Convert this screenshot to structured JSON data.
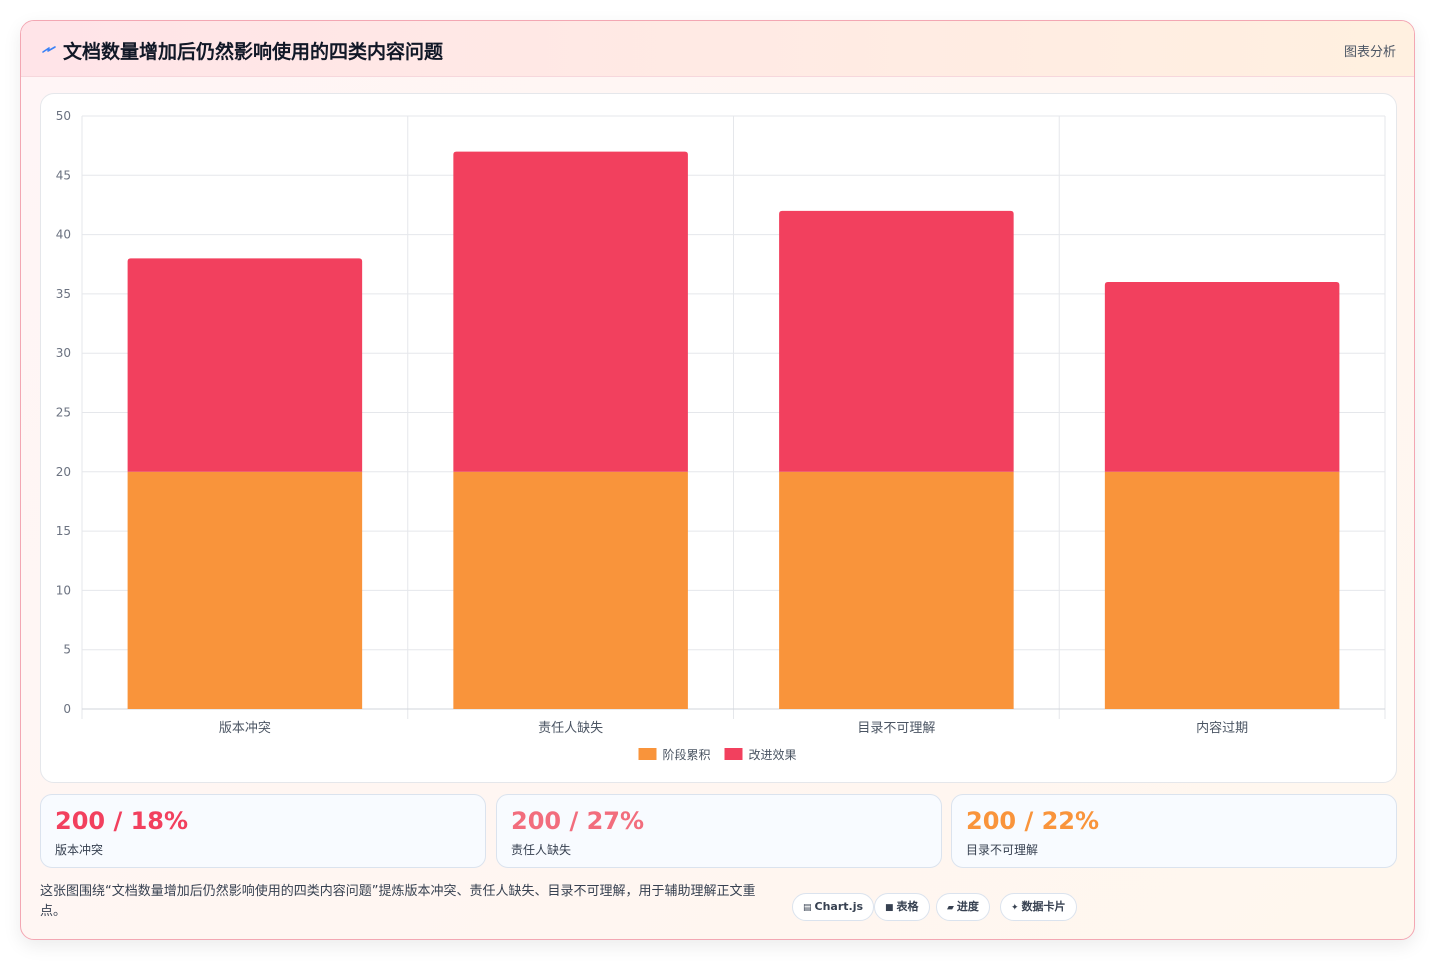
{
  "header": {
    "title": "文档数量增加后仍然影响使用的四类内容问题",
    "tag": "图表分析",
    "logo_icon": "lightning-icon"
  },
  "chart_data": {
    "type": "bar",
    "stacked": true,
    "categories": [
      "版本冲突",
      "责任人缺失",
      "目录不可理解",
      "内容过期"
    ],
    "series": [
      {
        "name": "阶段累积",
        "color": "#f9943b",
        "values": [
          20,
          20,
          20,
          20
        ]
      },
      {
        "name": "改进效果",
        "color": "#f2405e",
        "values": [
          18,
          27,
          22,
          16
        ]
      }
    ],
    "ylim": [
      0,
      50
    ],
    "yticks": [
      "0",
      "5",
      "10",
      "15",
      "20",
      "25",
      "30",
      "35",
      "40",
      "45",
      "50"
    ],
    "grid": true,
    "legend": "bottom"
  },
  "stats": [
    {
      "value": "200 / 18%",
      "label": "版本冲突",
      "color": "#f2405e"
    },
    {
      "value": "200 / 27%",
      "label": "责任人缺失",
      "color": "#f26d7d"
    },
    {
      "value": "200 / 22%",
      "label": "目录不可理解",
      "color": "#f9943b"
    }
  ],
  "footer": {
    "text": "这张图围绕“文档数量增加后仍然影响使用的四类内容问题”提炼版本冲突、责任人缺失、目录不可理解，用于辅助理解正文重点。",
    "chips": [
      {
        "icon": "chart-icon",
        "glyph": "▤",
        "label": "Chart.js"
      },
      {
        "icon": "table-icon",
        "glyph": "■",
        "label": "表格"
      },
      {
        "icon": "progress-icon",
        "glyph": "▰",
        "label": "进度"
      },
      {
        "icon": "sparkle-icon",
        "glyph": "✦",
        "label": "数据卡片"
      }
    ]
  }
}
